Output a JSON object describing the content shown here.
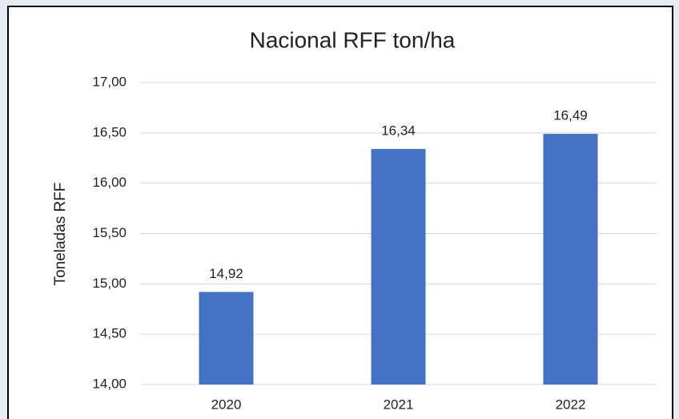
{
  "chart_data": {
    "type": "bar",
    "title": "Nacional RFF ton/ha",
    "y_label": "Toneladas RFF",
    "categories": [
      "2020",
      "2021",
      "2022"
    ],
    "values": [
      14.92,
      16.34,
      16.49
    ],
    "value_labels": [
      "14,92",
      "16,34",
      "16,49"
    ],
    "color": "#4472c4",
    "ylim": [
      14,
      17
    ],
    "yticks": [
      {
        "value": 14,
        "label": "14,00"
      },
      {
        "value": 14.5,
        "label": "14,50"
      },
      {
        "value": 15,
        "label": "15,00"
      },
      {
        "value": 15.5,
        "label": "15,50"
      },
      {
        "value": 16,
        "label": "16,00"
      },
      {
        "value": 16.5,
        "label": "16,50"
      },
      {
        "value": 17,
        "label": "17,00"
      }
    ],
    "grid": true
  }
}
